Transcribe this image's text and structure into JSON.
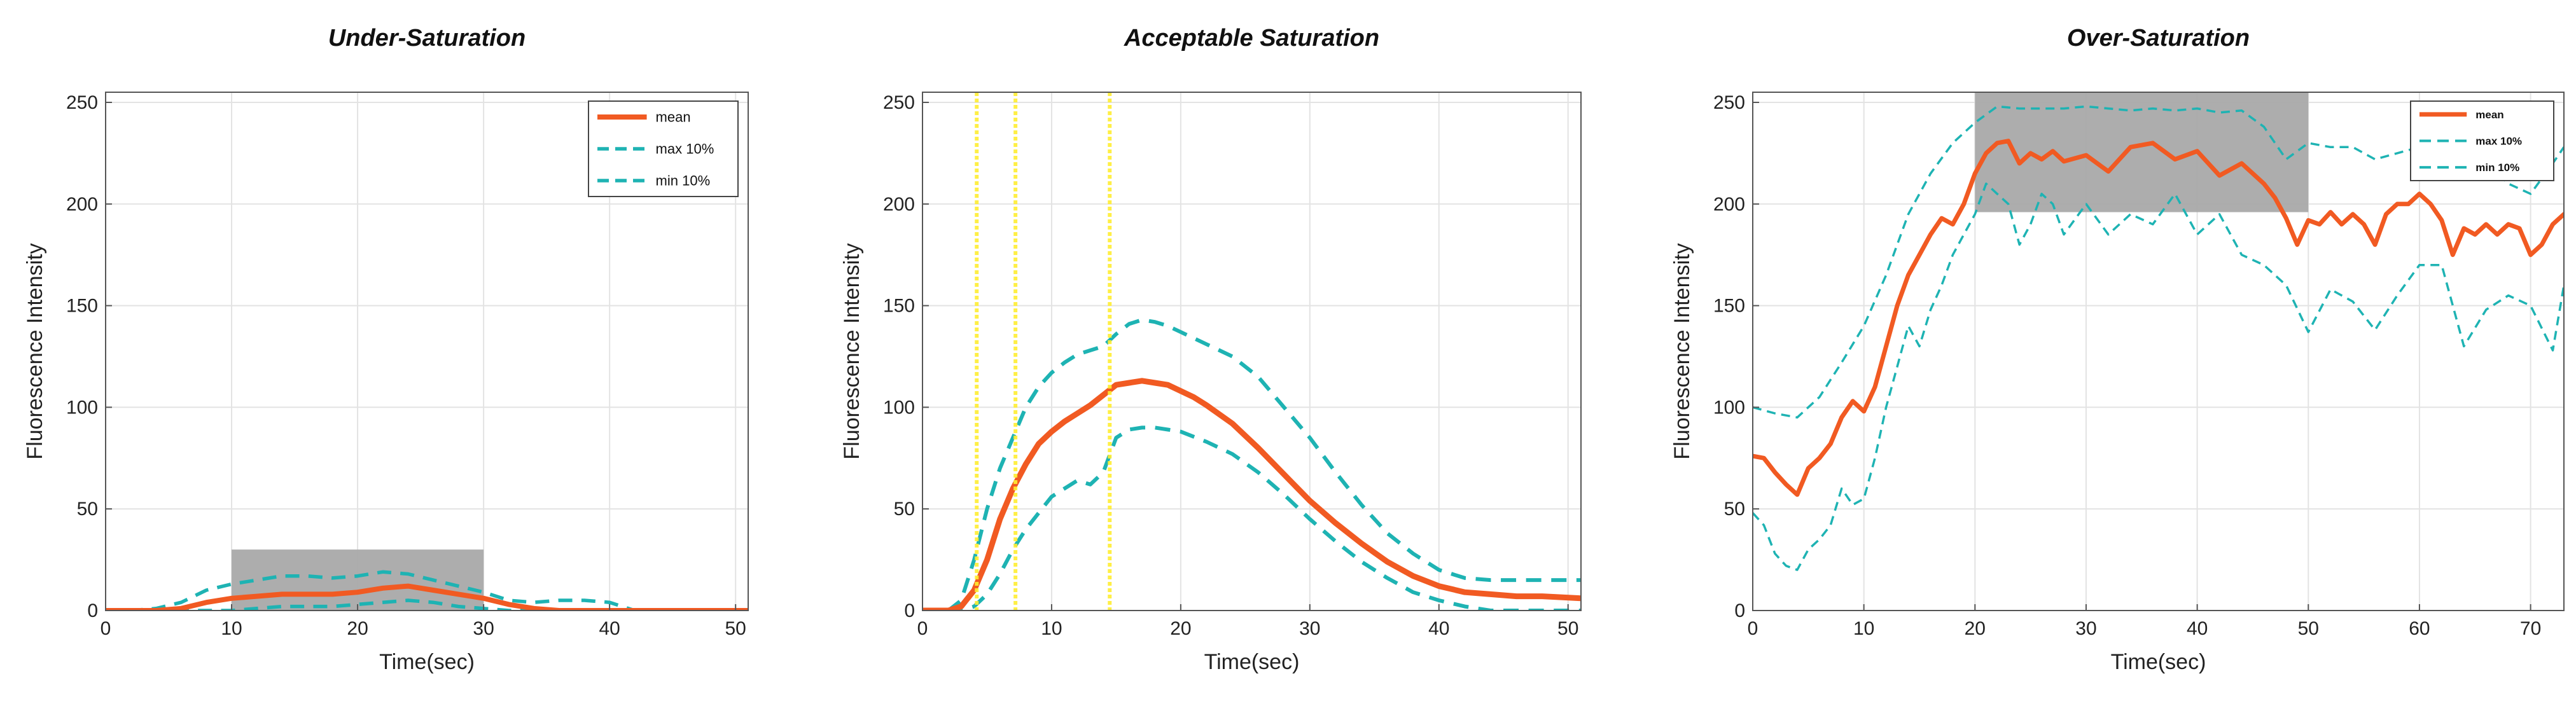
{
  "chart_data": [
    {
      "type": "line",
      "title": "Under-Saturation",
      "xlabel": "Time(sec)",
      "ylabel": "Fluorescence Intensity",
      "xlim": [
        0,
        51
      ],
      "ylim": [
        0,
        255
      ],
      "xticks": [
        0,
        10,
        20,
        30,
        40,
        50
      ],
      "yticks": [
        0,
        50,
        100,
        150,
        200,
        250
      ],
      "grid": true,
      "legend": {
        "placement": "top-right",
        "entries": [
          "mean",
          "max 10%",
          "min 10%"
        ]
      },
      "highlight_region": {
        "x": [
          10,
          30
        ],
        "y": [
          -5,
          30
        ],
        "color": "#a9a9a9"
      },
      "series": [
        {
          "name": "mean",
          "color": "#f15a22",
          "style": "solid",
          "x": [
            0,
            2,
            4,
            6,
            8,
            10,
            12,
            14,
            16,
            18,
            20,
            22,
            24,
            26,
            28,
            30,
            32,
            34,
            36,
            38,
            40,
            42,
            44,
            46,
            48,
            51
          ],
          "y": [
            0,
            0,
            0,
            1,
            4,
            6,
            7,
            8,
            8,
            8,
            9,
            11,
            12,
            10,
            8,
            6,
            3,
            1,
            0,
            0,
            0,
            0,
            0,
            0,
            0,
            0
          ]
        },
        {
          "name": "max 10%",
          "color": "#1eb3b3",
          "style": "dashed",
          "x": [
            0,
            2,
            4,
            6,
            8,
            10,
            12,
            14,
            16,
            18,
            20,
            22,
            24,
            26,
            28,
            30,
            32,
            34,
            36,
            38,
            40,
            42,
            44,
            46,
            48,
            51
          ],
          "y": [
            0,
            0,
            1,
            4,
            10,
            13,
            15,
            17,
            17,
            16,
            17,
            19,
            18,
            15,
            12,
            9,
            5,
            4,
            5,
            5,
            4,
            0,
            0,
            0,
            0,
            0
          ]
        },
        {
          "name": "min 10%",
          "color": "#1eb3b3",
          "style": "dashed",
          "x": [
            0,
            2,
            4,
            6,
            8,
            10,
            12,
            14,
            16,
            18,
            20,
            22,
            24,
            26,
            28,
            30,
            32,
            34,
            36,
            38,
            40,
            42,
            44,
            46,
            48,
            51
          ],
          "y": [
            0,
            0,
            0,
            0,
            0,
            0,
            1,
            2,
            2,
            2,
            3,
            4,
            5,
            4,
            2,
            1,
            0,
            0,
            0,
            0,
            0,
            0,
            0,
            0,
            0,
            0
          ]
        }
      ]
    },
    {
      "type": "line",
      "title": "Acceptable Saturation",
      "xlabel": "Time(sec)",
      "ylabel": "Fluorescence Intensity",
      "xlim": [
        0,
        51
      ],
      "ylim": [
        0,
        255
      ],
      "xticks": [
        0,
        10,
        20,
        30,
        40,
        50
      ],
      "yticks": [
        0,
        50,
        100,
        150,
        200,
        250
      ],
      "grid": true,
      "vertical_markers": {
        "x": [
          4.2,
          7.2,
          14.5
        ],
        "color": "#ffee33"
      },
      "series": [
        {
          "name": "mean",
          "color": "#f15a22",
          "style": "solid",
          "x": [
            0,
            2,
            3,
            4,
            5,
            6,
            7,
            8,
            9,
            10,
            11,
            12,
            13,
            14,
            15,
            16,
            17,
            18,
            19,
            20,
            21,
            22,
            24,
            26,
            28,
            30,
            32,
            34,
            36,
            38,
            40,
            42,
            44,
            46,
            48,
            51
          ],
          "y": [
            0,
            0,
            2,
            10,
            25,
            45,
            60,
            72,
            82,
            88,
            93,
            97,
            101,
            106,
            111,
            112,
            113,
            112,
            111,
            108,
            105,
            101,
            92,
            80,
            67,
            54,
            43,
            33,
            24,
            17,
            12,
            9,
            8,
            7,
            7,
            6
          ]
        },
        {
          "name": "max 10%",
          "color": "#1eb3b3",
          "style": "dashed",
          "x": [
            0,
            2,
            3,
            4,
            5,
            6,
            7,
            8,
            9,
            10,
            11,
            12,
            13,
            14,
            15,
            16,
            17,
            18,
            19,
            20,
            22,
            24,
            26,
            28,
            30,
            32,
            34,
            36,
            38,
            40,
            42,
            44,
            46,
            48,
            51
          ],
          "y": [
            0,
            0,
            5,
            25,
            50,
            70,
            85,
            100,
            110,
            117,
            122,
            126,
            128,
            130,
            136,
            141,
            143,
            142,
            140,
            137,
            131,
            125,
            115,
            100,
            85,
            68,
            52,
            38,
            28,
            20,
            16,
            15,
            15,
            15,
            15
          ]
        },
        {
          "name": "min 10%",
          "color": "#1eb3b3",
          "style": "dashed",
          "x": [
            0,
            2,
            3,
            4,
            5,
            6,
            7,
            8,
            9,
            10,
            11,
            12,
            13,
            14,
            15,
            16,
            17,
            18,
            19,
            20,
            22,
            24,
            26,
            28,
            30,
            32,
            34,
            36,
            38,
            40,
            42,
            44,
            46,
            48,
            51
          ],
          "y": [
            0,
            0,
            0,
            2,
            8,
            18,
            30,
            40,
            48,
            56,
            60,
            64,
            62,
            68,
            85,
            89,
            90,
            90,
            89,
            88,
            83,
            77,
            68,
            57,
            45,
            34,
            24,
            16,
            9,
            5,
            2,
            0,
            0,
            0,
            0
          ]
        }
      ]
    },
    {
      "type": "line",
      "title": "Over-Saturation",
      "xlabel": "Time(sec)",
      "ylabel": "Fluorescence Intensity",
      "xlim": [
        0,
        73
      ],
      "ylim": [
        0,
        255
      ],
      "xticks": [
        0,
        10,
        20,
        30,
        40,
        50,
        60,
        70
      ],
      "yticks": [
        0,
        50,
        100,
        150,
        200,
        250
      ],
      "grid": true,
      "legend": {
        "placement": "top-right",
        "entries": [
          "mean",
          "max 10%",
          "min 10%"
        ]
      },
      "highlight_region": {
        "x": [
          20,
          50
        ],
        "y": [
          196,
          258
        ],
        "color": "#a9a9a9"
      },
      "series": [
        {
          "name": "mean",
          "color": "#f15a22",
          "style": "solid",
          "x": [
            0,
            1,
            2,
            3,
            4,
            5,
            6,
            7,
            8,
            9,
            10,
            11,
            12,
            13,
            14,
            15,
            16,
            17,
            18,
            19,
            20,
            21,
            22,
            23,
            24,
            25,
            26,
            27,
            28,
            30,
            32,
            34,
            36,
            38,
            40,
            42,
            44,
            46,
            47,
            48,
            49,
            50,
            51,
            52,
            53,
            54,
            55,
            56,
            57,
            58,
            59,
            60,
            61,
            62,
            63,
            64,
            65,
            66,
            67,
            68,
            69,
            70,
            71,
            72,
            73
          ],
          "y": [
            76,
            75,
            68,
            62,
            57,
            70,
            75,
            82,
            95,
            103,
            98,
            110,
            130,
            150,
            165,
            175,
            185,
            193,
            190,
            200,
            215,
            225,
            230,
            231,
            220,
            225,
            222,
            226,
            221,
            224,
            216,
            228,
            230,
            222,
            226,
            214,
            220,
            210,
            203,
            193,
            180,
            192,
            190,
            196,
            190,
            195,
            190,
            180,
            195,
            200,
            200,
            205,
            200,
            192,
            175,
            188,
            185,
            190,
            185,
            190,
            188,
            175,
            180,
            190,
            195
          ]
        },
        {
          "name": "max 10%",
          "color": "#1eb3b3",
          "style": "dashed",
          "x": [
            0,
            2,
            4,
            6,
            8,
            10,
            12,
            14,
            16,
            18,
            20,
            22,
            24,
            26,
            28,
            30,
            32,
            34,
            36,
            38,
            40,
            42,
            44,
            46,
            48,
            50,
            52,
            54,
            56,
            58,
            60,
            62,
            64,
            66,
            68,
            70,
            72,
            73
          ],
          "y": [
            100,
            97,
            95,
            105,
            122,
            140,
            165,
            195,
            215,
            230,
            240,
            248,
            247,
            247,
            247,
            248,
            247,
            246,
            247,
            246,
            247,
            245,
            246,
            238,
            222,
            230,
            228,
            228,
            222,
            225,
            228,
            230,
            220,
            220,
            210,
            205,
            220,
            228
          ]
        },
        {
          "name": "min 10%",
          "color": "#1eb3b3",
          "style": "dashed",
          "x": [
            0,
            1,
            2,
            3,
            4,
            5,
            6,
            7,
            8,
            9,
            10,
            11,
            12,
            13,
            14,
            15,
            16,
            17,
            18,
            19,
            20,
            21,
            22,
            23,
            24,
            25,
            26,
            27,
            28,
            30,
            32,
            34,
            36,
            38,
            40,
            42,
            44,
            46,
            48,
            50,
            52,
            54,
            56,
            58,
            60,
            62,
            64,
            66,
            68,
            70,
            72,
            73
          ],
          "y": [
            48,
            42,
            28,
            22,
            20,
            30,
            35,
            42,
            60,
            52,
            55,
            75,
            100,
            120,
            140,
            130,
            148,
            160,
            175,
            185,
            195,
            210,
            205,
            200,
            180,
            190,
            205,
            200,
            185,
            200,
            185,
            195,
            190,
            205,
            185,
            195,
            175,
            170,
            160,
            137,
            158,
            152,
            138,
            155,
            170,
            170,
            130,
            148,
            155,
            150,
            128,
            160
          ]
        }
      ]
    }
  ]
}
